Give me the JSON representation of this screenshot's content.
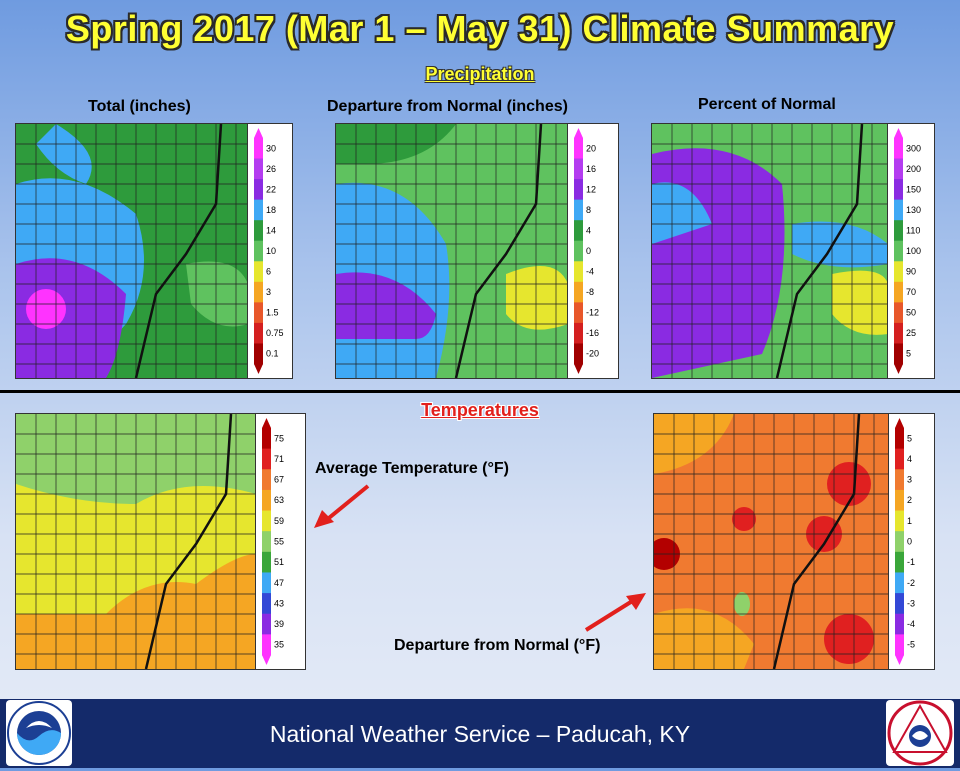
{
  "title": "Spring 2017 (Mar 1 – May 31) Climate Summary",
  "precipitation": {
    "heading": "Precipitation",
    "maps": [
      {
        "label": "Total (inches)",
        "legend": [
          "30",
          "26",
          "22",
          "18",
          "14",
          "10",
          "6",
          "3",
          "1.5",
          "0.75",
          "0.1"
        ]
      },
      {
        "label": "Departure from Normal (inches)",
        "legend": [
          "20",
          "16",
          "12",
          "8",
          "4",
          "0",
          "-4",
          "-8",
          "-12",
          "-16",
          "-20"
        ]
      },
      {
        "label": "Percent of Normal",
        "legend": [
          "300",
          "200",
          "150",
          "130",
          "110",
          "100",
          "90",
          "70",
          "50",
          "25",
          "5"
        ]
      }
    ]
  },
  "temperatures": {
    "heading": "Temperatures",
    "average": {
      "label": "Average Temperature (°F)",
      "legend": [
        "75",
        "71",
        "67",
        "63",
        "59",
        "55",
        "51",
        "47",
        "43",
        "39",
        "35"
      ]
    },
    "departure": {
      "label": "Departure from Normal (°F)",
      "legend": [
        "5",
        "4",
        "3",
        "2",
        "1",
        "0",
        "-1",
        "-2",
        "-3",
        "-4",
        "-5"
      ]
    }
  },
  "footer": {
    "text": "National Weather Service – Paducah, KY"
  },
  "logos": {
    "left": "NOAA",
    "right": "NATIONAL WEATHER SERVICE"
  },
  "colors": {
    "title": "#ffff33",
    "temp_heading": "#e2201c",
    "footer_bg": "#142a6a",
    "precip_scale": [
      "#ff33ff",
      "#b43cf0",
      "#8a2be2",
      "#3fa9f5",
      "#2e9b3c",
      "#5fc25f",
      "#e6e62e",
      "#f5a623",
      "#e8572a",
      "#d41f1f",
      "#a00000"
    ],
    "temp_scale": [
      "#b30000",
      "#e02020",
      "#f07a30",
      "#f5a623",
      "#e6e62e",
      "#8fd16a",
      "#3aa63a",
      "#3fa9f5",
      "#3348d6",
      "#8a2be2",
      "#ff33ff"
    ]
  }
}
